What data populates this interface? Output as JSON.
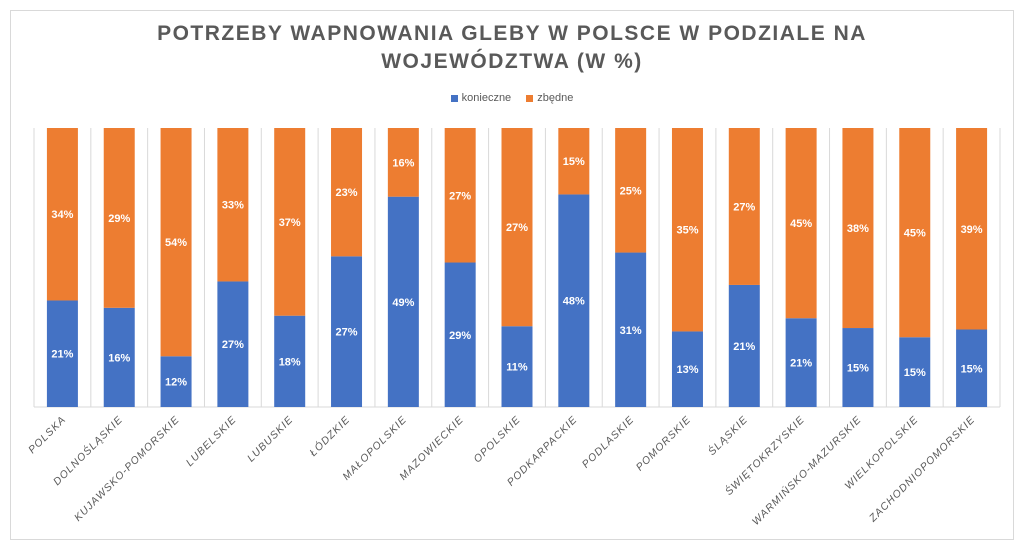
{
  "chart_data": {
    "type": "bar",
    "stacked": true,
    "normalized": true,
    "title": "POTRZEBY WAPNOWANIA GLEBY W POLSCE W PODZIALE NA WOJEWÓDZTWA (W %)",
    "title_lines": [
      "POTRZEBY WAPNOWANIA GLEBY W POLSCE W PODZIALE NA",
      "WOJEWÓDZTWA (W %)"
    ],
    "legend_position": "top",
    "categories": [
      "POLSKA",
      "DOLNOŚLĄSKIE",
      "KUJAWSKO-POMORSKIE",
      "LUBELSKIE",
      "LUBUSKIE",
      "ŁÓDZKIE",
      "MAŁOPOLSKIE",
      "MAZOWIECKIE",
      "OPOLSKIE",
      "PODKARPACKIE",
      "PODLASKIE",
      "POMORSKIE",
      "ŚLĄSKIE",
      "ŚWIĘTOKRZYSKIE",
      "WARMIŃSKO-MAZURSKIE",
      "WIELKOPOLSKIE",
      "ZACHODNIOPOMORSKIE"
    ],
    "series": [
      {
        "name": "konieczne",
        "color": "#4472c4",
        "values": [
          21,
          16,
          12,
          27,
          18,
          27,
          49,
          29,
          11,
          48,
          31,
          13,
          21,
          21,
          15,
          15,
          15
        ]
      },
      {
        "name": "zbędne",
        "color": "#ed7d31",
        "values": [
          34,
          29,
          54,
          33,
          37,
          23,
          16,
          27,
          27,
          15,
          25,
          35,
          27,
          45,
          38,
          45,
          39
        ]
      }
    ],
    "value_suffix": "%"
  }
}
